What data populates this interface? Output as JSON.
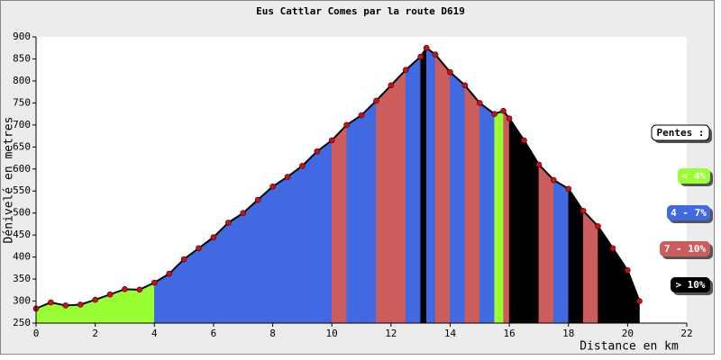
{
  "chart_data": {
    "type": "area",
    "title": "Eus Cattlar Comes par la route D619",
    "x_label": "Distance en km",
    "y_label": "Dénivelé en metres",
    "x": [
      0,
      0.5,
      1,
      1.5,
      2,
      2.5,
      3,
      3.5,
      4,
      4.5,
      5,
      5.5,
      6,
      6.5,
      7,
      7.5,
      8,
      8.5,
      9,
      9.5,
      10,
      10.5,
      11,
      11.5,
      12,
      12.5,
      13,
      13.2,
      13.5,
      14,
      14.5,
      15,
      15.5,
      15.8,
      16,
      16.5,
      17,
      17.5,
      18,
      18.5,
      19,
      19.5,
      20,
      20.4
    ],
    "values": [
      283,
      297,
      290,
      292,
      303,
      315,
      327,
      326,
      342,
      362,
      395,
      420,
      445,
      478,
      500,
      530,
      560,
      582,
      607,
      640,
      665,
      700,
      722,
      755,
      790,
      825,
      855,
      875,
      860,
      820,
      790,
      750,
      725,
      732,
      715,
      665,
      610,
      575,
      555,
      505,
      470,
      420,
      370,
      300
    ],
    "line_color": "#000000",
    "marker_color": "#cc1111",
    "xlim": [
      0,
      22
    ],
    "xticks": [
      0,
      2,
      4,
      6,
      8,
      10,
      12,
      14,
      16,
      18,
      20,
      22
    ],
    "ylim": [
      250,
      900
    ],
    "yticks": [
      250,
      300,
      350,
      400,
      450,
      500,
      550,
      600,
      650,
      700,
      750,
      800,
      850,
      900
    ],
    "legend": {
      "title": "Pentes :",
      "items": [
        {
          "label": "< 4%",
          "color": "#99ff33",
          "max": 4
        },
        {
          "label": "4 - 7%",
          "color": "#4169e1",
          "max": 7
        },
        {
          "label": "7 - 10%",
          "color": "#cd5c5c",
          "max": 10
        },
        {
          "label": "> 10%",
          "color": "#000000"
        }
      ]
    }
  }
}
